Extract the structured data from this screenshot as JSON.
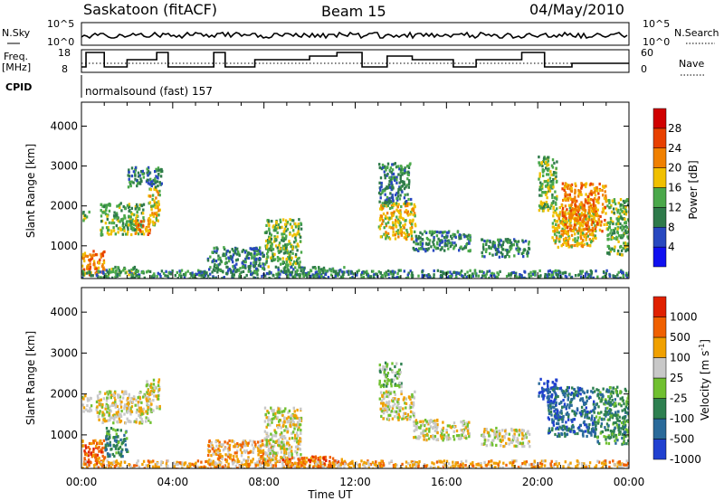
{
  "header": {
    "radar": "Saskatoon (fitACF)",
    "beam": "Beam 15",
    "date": "04/May/2010"
  },
  "top_panels": {
    "nsky_label": "N.Sky",
    "nsky_ticks": [
      "10^5",
      "10^0"
    ],
    "nsearch_label": "N.Search",
    "nsearch_ticks": [
      "10^5",
      "10^0"
    ],
    "freq_label_1": "Freq.",
    "freq_label_2": "[MHz]",
    "freq_ticks": [
      "18",
      "8"
    ],
    "nave_label": "Nave",
    "nave_ticks": [
      "60",
      "0"
    ],
    "cpid_label": "CPID",
    "cpid_text": "normalsound (fast) 157"
  },
  "chart_data": [
    {
      "type": "heatmap",
      "title": "",
      "parameter": "Power",
      "ylabel": "Slant Range [km]",
      "xlabel": "",
      "y_ticks": [
        "1000",
        "2000",
        "3000",
        "4000"
      ],
      "ylim": [
        180,
        4600
      ],
      "xlim": [
        "00:00",
        "24:00"
      ],
      "colorbar": {
        "label": "Power [dB]",
        "ticks": [
          "4",
          "8",
          "12",
          "16",
          "20",
          "24",
          "28"
        ],
        "range": [
          0,
          30
        ],
        "colors": [
          "#1010f0",
          "#2848c0",
          "#2e7a4a",
          "#4aa84a",
          "#f0c000",
          "#f08000",
          "#e84000",
          "#d00000"
        ]
      },
      "echo_regions": [
        {
          "t0": 0.0,
          "t1": 1.0,
          "r0": 300,
          "r1": 900,
          "level": 5
        },
        {
          "t0": 0.0,
          "t1": 0.3,
          "r0": 1650,
          "r1": 1900,
          "level": 3
        },
        {
          "t0": 1.0,
          "t1": 2.4,
          "r0": 300,
          "r1": 500,
          "level": 3
        },
        {
          "t0": 0.8,
          "t1": 2.7,
          "r0": 1300,
          "r1": 2100,
          "level": 3
        },
        {
          "t0": 2.3,
          "t1": 3.0,
          "r0": 1300,
          "r1": 1700,
          "level": 5
        },
        {
          "t0": 2.9,
          "t1": 3.4,
          "r0": 1550,
          "r1": 2500,
          "level": 4
        },
        {
          "t0": 2.0,
          "t1": 3.5,
          "r0": 2500,
          "r1": 3000,
          "level": 2
        },
        {
          "t0": 5.5,
          "t1": 8.0,
          "r0": 400,
          "r1": 1000,
          "level": 2
        },
        {
          "t0": 8.0,
          "t1": 9.6,
          "r0": 500,
          "r1": 1700,
          "level": 3
        },
        {
          "t0": 8.5,
          "t1": 11.5,
          "r0": 250,
          "r1": 500,
          "level": 2
        },
        {
          "t0": 13.0,
          "t1": 14.6,
          "r0": 1200,
          "r1": 2100,
          "level": 4
        },
        {
          "t0": 13.0,
          "t1": 14.4,
          "r0": 2100,
          "r1": 3100,
          "level": 2
        },
        {
          "t0": 14.5,
          "t1": 17.0,
          "r0": 900,
          "r1": 1400,
          "level": 2
        },
        {
          "t0": 17.5,
          "t1": 19.6,
          "r0": 750,
          "r1": 1200,
          "level": 2
        },
        {
          "t0": 20.0,
          "t1": 20.8,
          "r0": 1900,
          "r1": 3300,
          "level": 3
        },
        {
          "t0": 20.6,
          "t1": 22.5,
          "r0": 1000,
          "r1": 2000,
          "level": 4
        },
        {
          "t0": 21.0,
          "t1": 23.0,
          "r0": 1400,
          "r1": 2600,
          "level": 5
        },
        {
          "t0": 23.0,
          "t1": 24.0,
          "r0": 800,
          "r1": 2200,
          "level": 3
        },
        {
          "t0": 0.0,
          "t1": 24.0,
          "r0": 180,
          "r1": 420,
          "level": 2
        }
      ]
    },
    {
      "type": "heatmap",
      "title": "",
      "parameter": "Velocity",
      "ylabel": "Slant Range [km]",
      "xlabel": "Time UT",
      "x_ticks": [
        "00:00",
        "04:00",
        "08:00",
        "12:00",
        "16:00",
        "20:00",
        "00:00"
      ],
      "y_ticks": [
        "1000",
        "2000",
        "3000",
        "4000"
      ],
      "ylim": [
        180,
        4600
      ],
      "xlim": [
        "00:00",
        "24:00"
      ],
      "colorbar": {
        "label": "Velocity [m s^-1]",
        "ticks": [
          "1000",
          "500",
          "100",
          "25",
          "-25",
          "-100",
          "-500",
          "-1000"
        ],
        "colors": [
          "#2040d0",
          "#2a6a9a",
          "#2e8050",
          "#70c030",
          "#c8c8c8",
          "#f0a000",
          "#f06000",
          "#e02000"
        ]
      },
      "echo_regions": [
        {
          "t0": 0.0,
          "t1": 1.0,
          "r0": 300,
          "r1": 900,
          "level": 6
        },
        {
          "t0": 0.0,
          "t1": 0.4,
          "r0": 1600,
          "r1": 2000,
          "level": 4
        },
        {
          "t0": 0.6,
          "t1": 3.0,
          "r0": 1300,
          "r1": 2100,
          "level": 4
        },
        {
          "t0": 2.8,
          "t1": 3.4,
          "r0": 1600,
          "r1": 2400,
          "level": 4
        },
        {
          "t0": 1.0,
          "t1": 2.0,
          "r0": 500,
          "r1": 1200,
          "level": 2
        },
        {
          "t0": 5.5,
          "t1": 8.5,
          "r0": 300,
          "r1": 900,
          "level": 5
        },
        {
          "t0": 8.0,
          "t1": 9.6,
          "r0": 400,
          "r1": 1700,
          "level": 4
        },
        {
          "t0": 8.5,
          "t1": 11.5,
          "r0": 220,
          "r1": 500,
          "level": 6
        },
        {
          "t0": 13.0,
          "t1": 14.0,
          "r0": 2200,
          "r1": 2800,
          "level": 3
        },
        {
          "t0": 13.0,
          "t1": 14.6,
          "r0": 1400,
          "r1": 2100,
          "level": 4
        },
        {
          "t0": 14.5,
          "t1": 17.0,
          "r0": 900,
          "r1": 1400,
          "level": 4
        },
        {
          "t0": 17.5,
          "t1": 19.6,
          "r0": 750,
          "r1": 1200,
          "level": 4
        },
        {
          "t0": 20.0,
          "t1": 20.8,
          "r0": 1900,
          "r1": 2400,
          "level": 0
        },
        {
          "t0": 20.4,
          "t1": 22.5,
          "r0": 1000,
          "r1": 2200,
          "level": 1
        },
        {
          "t0": 22.5,
          "t1": 24.0,
          "r0": 800,
          "r1": 2200,
          "level": 2
        },
        {
          "t0": 0.0,
          "t1": 24.0,
          "r0": 180,
          "r1": 400,
          "level": 5
        }
      ]
    }
  ]
}
